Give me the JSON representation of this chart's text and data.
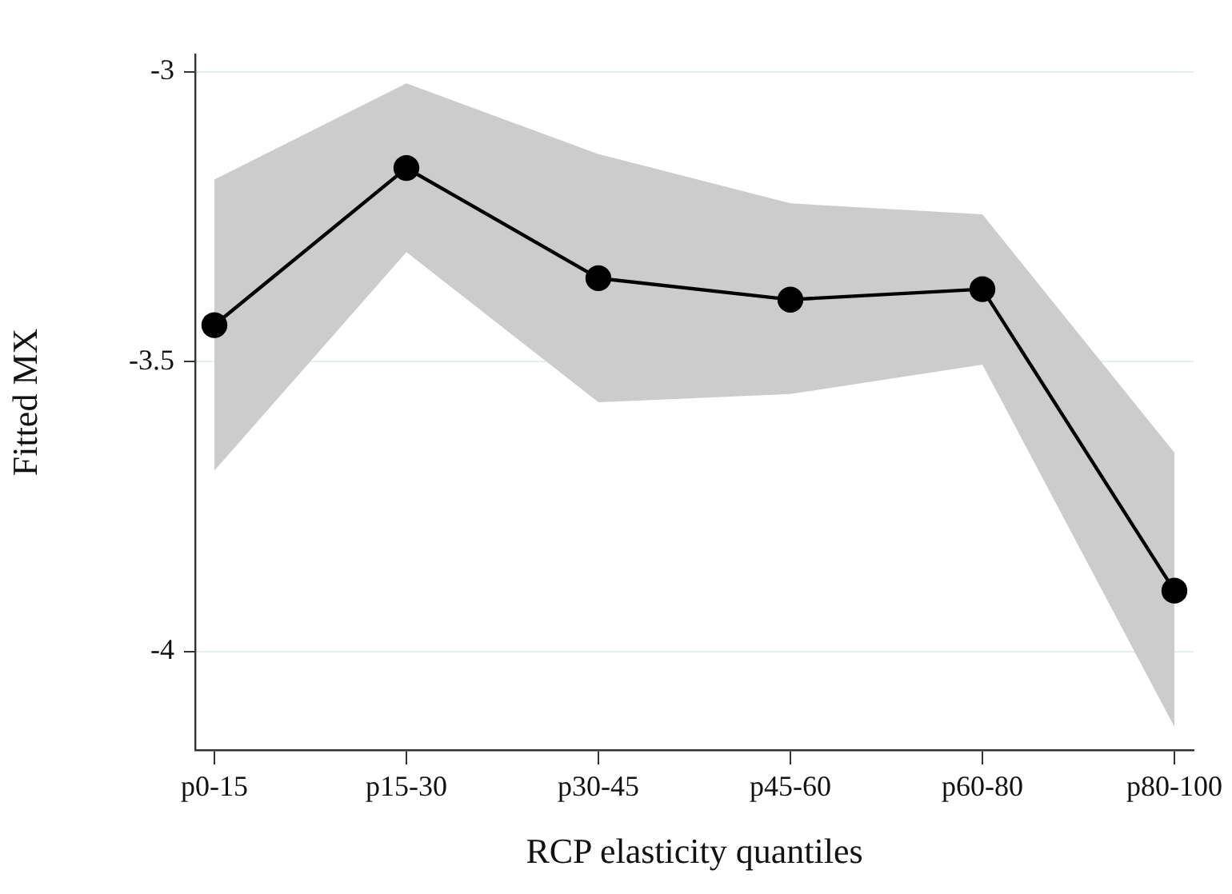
{
  "chart_data": {
    "type": "line",
    "xlabel": "RCP elasticity quantiles",
    "ylabel": "Fitted MX",
    "categories": [
      "p0-15",
      "p15-30",
      "p30-45",
      "p45-60",
      "p60-80",
      "p80-100"
    ],
    "series": [
      {
        "color": "#000000",
        "values": [
          -3.437,
          -3.166,
          -3.356,
          -3.393,
          -3.375,
          -3.895
        ],
        "lower": [
          -3.688,
          -3.311,
          -3.57,
          -3.556,
          -3.505,
          -4.13
        ],
        "upper": [
          -3.186,
          -3.02,
          -3.142,
          -3.227,
          -3.246,
          -3.657
        ]
      }
    ],
    "ylim": [
      -4.17,
      -2.97
    ],
    "yticks": [
      -3,
      -3.5,
      -4
    ],
    "grid": "y",
    "marker": "circle",
    "line_style": "solid"
  }
}
